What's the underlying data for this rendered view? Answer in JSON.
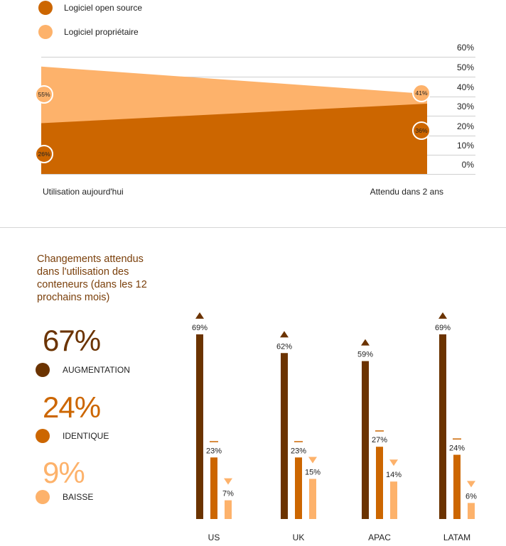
{
  "colors": {
    "open_source": "#cc6600",
    "proprietary": "#fdb26b",
    "increase": "#6b3300",
    "same": "#cc6600",
    "decrease": "#fdb26b"
  },
  "legend": {
    "open_source": "Logiciel open source",
    "proprietary": "Logiciel propriétaire"
  },
  "section_title": "Changements attendus dans l'utilisation des conteneurs (dans les 12 prochains mois)",
  "kpis": [
    {
      "value": "67%",
      "label": "AUGMENTATION"
    },
    {
      "value": "24%",
      "label": "IDENTIQUE"
    },
    {
      "value": "9%",
      "label": "BAISSE"
    }
  ],
  "chart_data": [
    {
      "type": "area",
      "categories": [
        "Utilisation aujourd'hui",
        "Attendu dans 2 ans"
      ],
      "series": [
        {
          "name": "Logiciel open source",
          "values": [
            26,
            36
          ],
          "labels": [
            "26%",
            "36%"
          ]
        },
        {
          "name": "Logiciel propriétaire",
          "values": [
            55,
            41
          ],
          "labels": [
            "55%",
            "41%"
          ]
        }
      ],
      "y_ticks": [
        "0%",
        "10%",
        "20%",
        "30%",
        "40%",
        "50%",
        "60%"
      ],
      "ylim": [
        0,
        60
      ],
      "stacked": false
    },
    {
      "type": "bar",
      "categories": [
        "US",
        "UK",
        "APAC",
        "LATAM"
      ],
      "series": [
        {
          "name": "Augmentation",
          "values": [
            69,
            62,
            59,
            69
          ],
          "labels": [
            "69%",
            "62%",
            "59%",
            "69%"
          ],
          "marker": "▲"
        },
        {
          "name": "Identique",
          "values": [
            23,
            23,
            27,
            24
          ],
          "labels": [
            "23%",
            "23%",
            "27%",
            "24%"
          ],
          "marker": "—"
        },
        {
          "name": "Baisse",
          "values": [
            7,
            15,
            14,
            6
          ],
          "labels": [
            "7%",
            "15%",
            "14%",
            "6%"
          ],
          "marker": "▼"
        }
      ],
      "ylim": [
        0,
        69
      ]
    }
  ]
}
